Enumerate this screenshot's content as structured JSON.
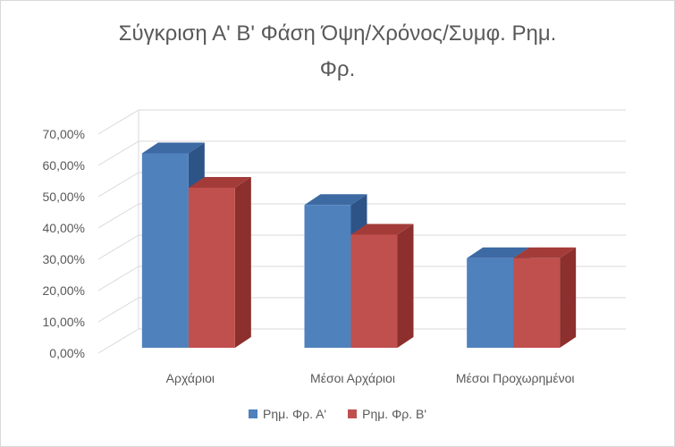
{
  "chart_data": {
    "type": "bar",
    "title_line1": "Σύγκριση Α' Β' Φάση Όψη/Χρόνος/Συμφ. Ρημ.",
    "title_line2": "Φρ.",
    "categories": [
      "Αρχάριοι",
      "Μέσοι Αρχάριοι",
      "Μέσοι Προχωρημένοι"
    ],
    "series": [
      {
        "name": "Ρημ. Φρ. Α'",
        "values": [
          0.61,
          0.445,
          0.275
        ],
        "color": "#4f81bd",
        "side_color": "#2e5487",
        "top_color": "#3d6aa3"
      },
      {
        "name": "Ρημ. Φρ. Β'",
        "values": [
          0.5,
          0.35,
          0.275
        ],
        "color": "#c0504d",
        "side_color": "#8c2f2d",
        "top_color": "#a33c39"
      }
    ],
    "y_ticks": [
      "0,00%",
      "10,00%",
      "20,00%",
      "30,00%",
      "40,00%",
      "50,00%",
      "60,00%",
      "70,00%"
    ],
    "ylim": [
      0,
      0.7
    ],
    "grid": true,
    "legend_position": "bottom"
  }
}
